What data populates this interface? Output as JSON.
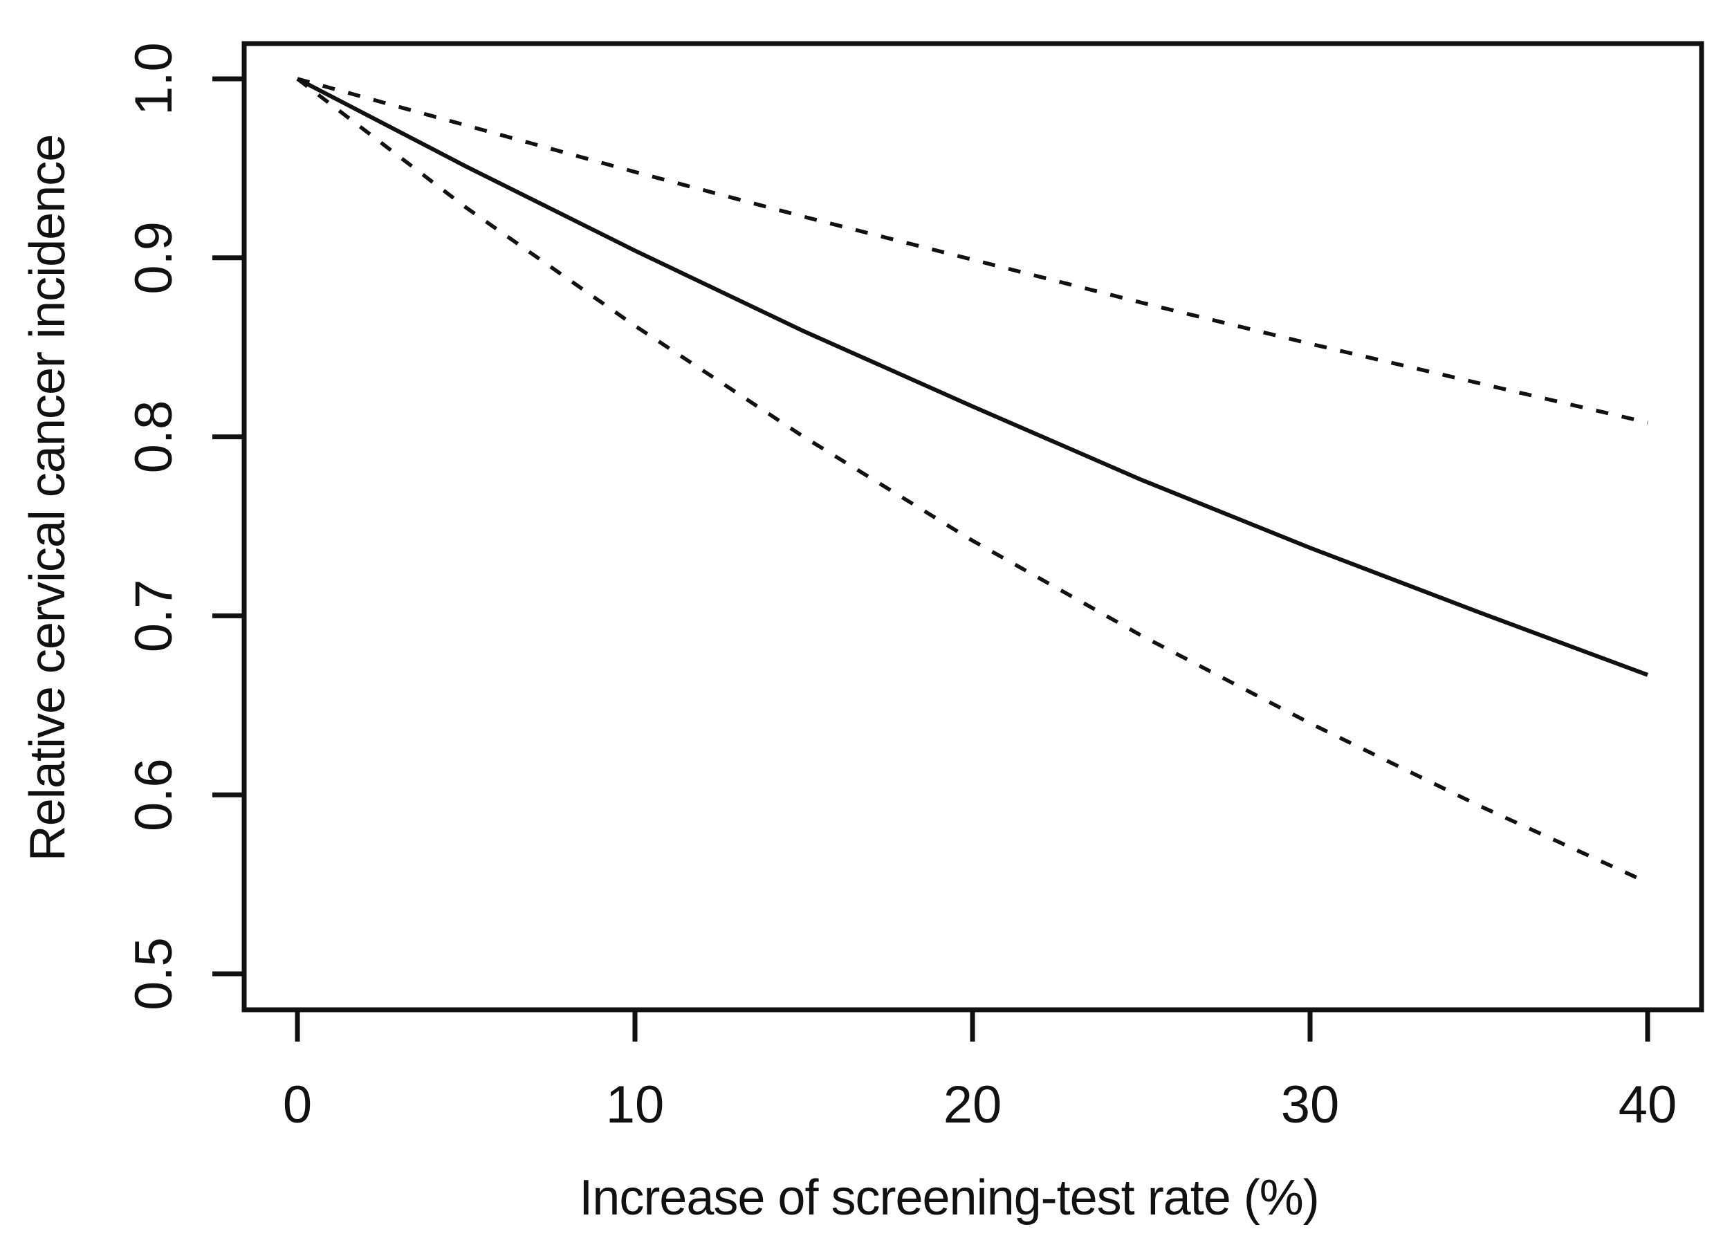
{
  "figure": {
    "background_color": "#ffffff",
    "ink_color": "#111111"
  },
  "chart_data": {
    "type": "line",
    "title": "",
    "xlabel": "Increase of screening-test rate (%)",
    "ylabel": "Relative cervical cancer incidence",
    "xlim": [
      0,
      40
    ],
    "ylim": [
      0.5,
      1.0
    ],
    "x_tick_values": [
      0,
      10,
      20,
      30,
      40
    ],
    "x_tick_labels": [
      "0",
      "10",
      "20",
      "30",
      "40"
    ],
    "y_tick_values": [
      1.0,
      0.9,
      0.8,
      0.7,
      0.6,
      0.5
    ],
    "y_tick_labels": [
      "1.0",
      "0.9",
      "0.8",
      "0.7",
      "0.6",
      "0.5"
    ],
    "grid": false,
    "legend_position": "none",
    "frame": "full-box",
    "x": [
      0,
      5,
      10,
      15,
      20,
      25,
      30,
      35,
      40
    ],
    "series": [
      {
        "name": "central-estimate-line",
        "style": "solid",
        "values": [
          1.0,
          0.951,
          0.904,
          0.859,
          0.817,
          0.776,
          0.738,
          0.702,
          0.667
        ]
      },
      {
        "name": "upper-dashed-ci-line",
        "style": "dashed",
        "values": [
          1.0,
          0.974,
          0.948,
          0.923,
          0.899,
          0.875,
          0.852,
          0.83,
          0.808
        ]
      },
      {
        "name": "lower-dashed-ci-line",
        "style": "dashed",
        "values": [
          1.0,
          0.928,
          0.862,
          0.8,
          0.742,
          0.689,
          0.64,
          0.594,
          0.551
        ]
      }
    ]
  }
}
